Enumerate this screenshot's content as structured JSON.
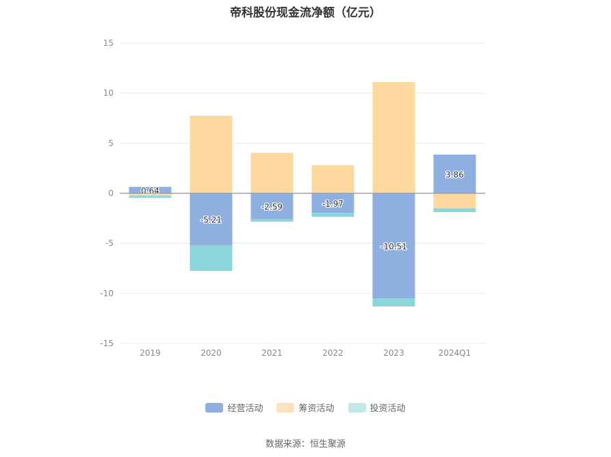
{
  "chart_data": {
    "type": "bar",
    "stacked": true,
    "title": "帝科股份现金流净额（亿元）",
    "categories": [
      "2019",
      "2020",
      "2021",
      "2022",
      "2023",
      "2024Q1"
    ],
    "ylim": [
      -15,
      15
    ],
    "yticks": [
      15,
      10,
      5,
      0,
      -5,
      -10,
      -15
    ],
    "ytick_labels": [
      "15",
      "10",
      "5",
      "0",
      "-5",
      "-10",
      "-15"
    ],
    "grid": true,
    "legend_position": "bottom",
    "series": [
      {
        "name": "经营活动",
        "color": "#8eafdf",
        "values": [
          0.64,
          -5.21,
          -2.59,
          -1.97,
          -10.51,
          3.86
        ],
        "labels": [
          "0.64",
          "-5.21",
          "-2.59",
          "-1.97",
          "-10.51",
          "3.86"
        ]
      },
      {
        "name": "筹资活动",
        "color": "#fdd99f",
        "values": [
          -0.25,
          7.75,
          4.05,
          2.8,
          11.1,
          -1.5
        ]
      },
      {
        "name": "投资活动",
        "color": "#8ad6da",
        "values": [
          -0.2,
          -2.55,
          -0.25,
          -0.38,
          -0.8,
          -0.38
        ]
      }
    ]
  },
  "legend": {
    "items": [
      {
        "label": "经营活动",
        "color": "#8eafdf"
      },
      {
        "label": "筹资活动",
        "color": "#fde3bd"
      },
      {
        "label": "投资活动",
        "color": "#bfe8ea"
      }
    ]
  },
  "footer": {
    "source": "数据来源：恒生聚源"
  }
}
